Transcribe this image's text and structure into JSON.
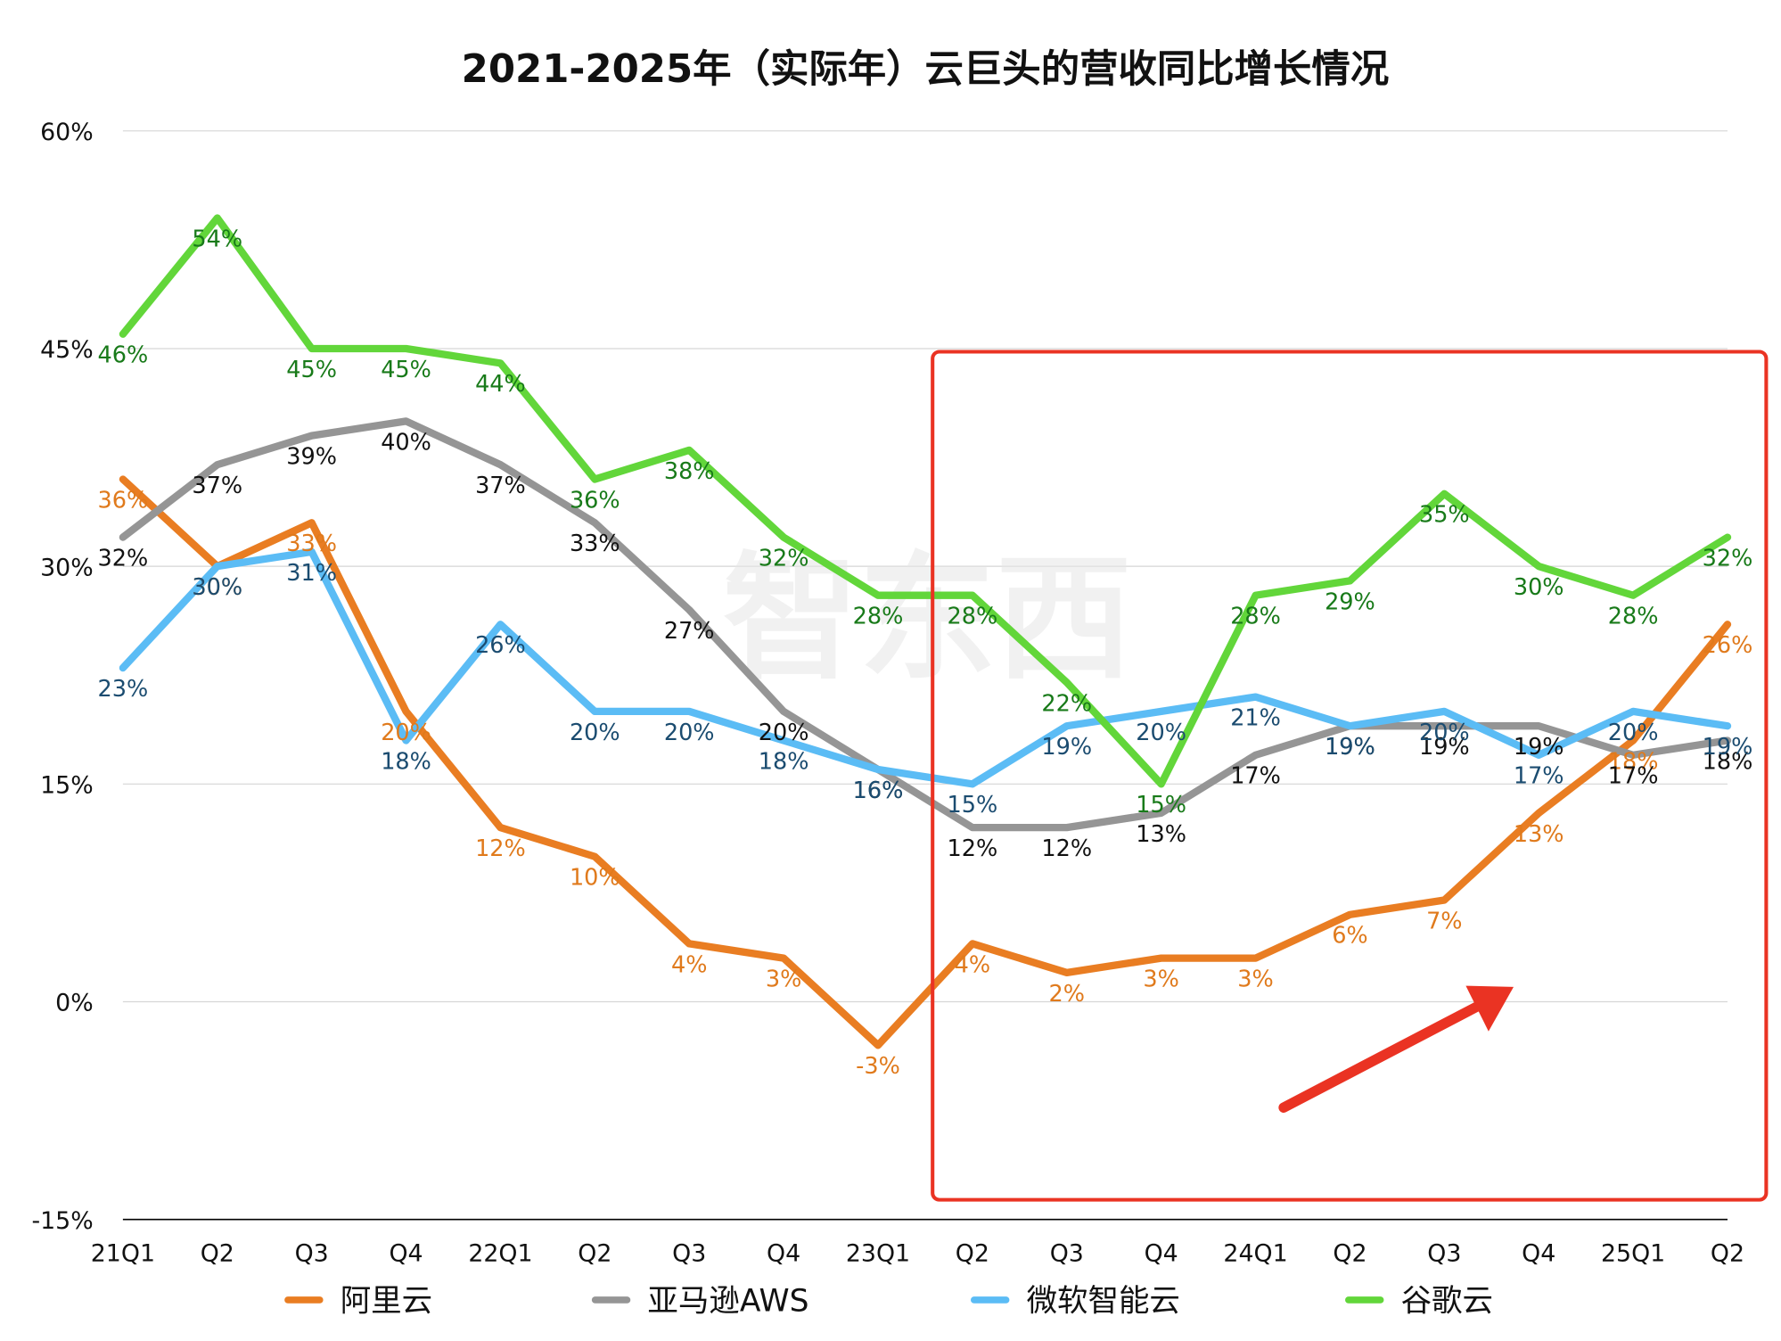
{
  "chart_data": {
    "type": "line",
    "title": "2021-2025年（实际年）云巨头的营收同比增长情况",
    "xlabel": "",
    "ylabel": "",
    "categories": [
      "21Q1",
      "Q2",
      "Q3",
      "Q4",
      "22Q1",
      "Q2",
      "Q3",
      "Q4",
      "23Q1",
      "Q2",
      "Q3",
      "Q4",
      "24Q1",
      "Q2",
      "Q3",
      "Q4",
      "25Q1",
      "Q2"
    ],
    "ylim": [
      -15,
      60
    ],
    "yticks": [
      -15,
      0,
      15,
      30,
      45,
      60
    ],
    "ytick_labels": [
      "-15%",
      "0%",
      "15%",
      "30%",
      "45%",
      "60%"
    ],
    "grid": true,
    "legend_position": "bottom",
    "series": [
      {
        "name": "阿里云",
        "color": "#E97D22",
        "label_color": "#E07A1C",
        "values": [
          36,
          30,
          33,
          20,
          12,
          10,
          4,
          3,
          -3,
          4,
          2,
          3,
          3,
          6,
          7,
          13,
          18,
          26
        ],
        "labels": [
          "36%",
          "30%",
          "33%",
          "20%",
          "12%",
          "10%",
          "4%",
          "3%",
          "-3%",
          "4%",
          "2%",
          "3%",
          "3%",
          "6%",
          "7%",
          "13%",
          "18%",
          "26%"
        ]
      },
      {
        "name": "亚马逊AWS",
        "color": "#959595",
        "label_color": "#111111",
        "values": [
          32,
          37,
          39,
          40,
          37,
          33,
          27,
          20,
          16,
          12,
          12,
          13,
          17,
          19,
          19,
          19,
          17,
          18
        ],
        "labels": [
          "32%",
          "37%",
          "39%",
          "40%",
          "37%",
          "33%",
          "27%",
          "20%",
          "16%",
          "12%",
          "12%",
          "13%",
          "17%",
          "19%",
          "19%",
          "19%",
          "17%",
          "18%"
        ]
      },
      {
        "name": "微软智能云",
        "color": "#5BBCF5",
        "label_color": "#1B4C70",
        "values": [
          23,
          30,
          31,
          18,
          26,
          20,
          20,
          18,
          16,
          15,
          19,
          20,
          21,
          19,
          20,
          17,
          20,
          19
        ],
        "labels": [
          "23%",
          "30%",
          "31%",
          "18%",
          "26%",
          "20%",
          "20%",
          "18%",
          "16%",
          "15%",
          "19%",
          "20%",
          "21%",
          "19%",
          "20%",
          "17%",
          "20%",
          "19%"
        ]
      },
      {
        "name": "谷歌云",
        "color": "#62D63A",
        "label_color": "#187A19",
        "values": [
          46,
          54,
          45,
          45,
          44,
          36,
          38,
          32,
          28,
          28,
          22,
          15,
          28,
          29,
          35,
          30,
          28,
          32
        ],
        "labels": [
          "46%",
          "54%",
          "45%",
          "45%",
          "44%",
          "36%",
          "38%",
          "32%",
          "28%",
          "28%",
          "22%",
          "15%",
          "28%",
          "29%",
          "35%",
          "30%",
          "28%",
          "32%"
        ]
      }
    ],
    "annotations": {
      "highlight_box": {
        "from_category_index": 9,
        "to_category_index": 17,
        "color": "#EA3323"
      },
      "arrow": {
        "color": "#EA3323",
        "direction": "up-right"
      },
      "watermark": "智东西"
    }
  }
}
